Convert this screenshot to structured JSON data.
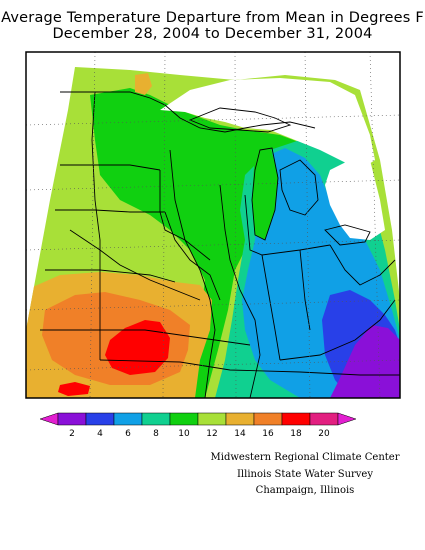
{
  "title": {
    "line1": "Average Temperature Departure from Mean in Degrees F",
    "line2": "December 28, 2004 to December 31, 2004"
  },
  "legend": {
    "labels": [
      "2",
      "4",
      "6",
      "8",
      "10",
      "12",
      "14",
      "16",
      "18",
      "20"
    ],
    "colors": [
      "#e21fd0",
      "#8a10d8",
      "#2840e8",
      "#10a0e6",
      "#10d090",
      "#10d010",
      "#a8e038",
      "#e8b030",
      "#f08028",
      "#ff0000",
      "#e21f80"
    ]
  },
  "credits": {
    "line1": "Midwestern Regional Climate Center",
    "line2": "Illinois State Water Survey",
    "line3": "Champaign, Illinois"
  }
}
